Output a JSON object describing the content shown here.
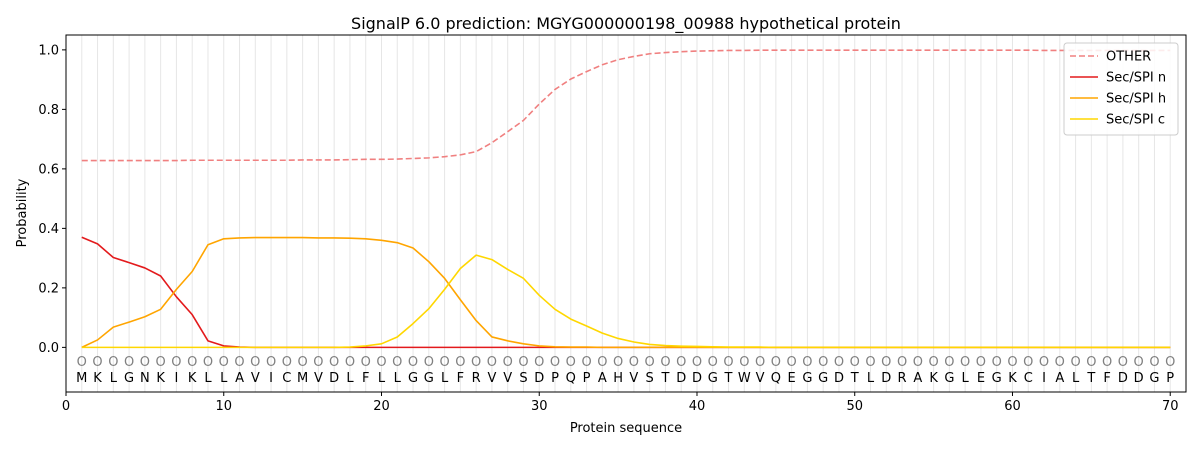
{
  "chart_data": {
    "type": "line",
    "title": "SignalP 6.0 prediction: MGYG000000198_00988 hypothetical protein",
    "xlabel": "Protein sequence",
    "ylabel": "Probability",
    "xlim": [
      0,
      71
    ],
    "ylim": [
      -0.15,
      1.05
    ],
    "xticks": [
      0,
      10,
      20,
      30,
      40,
      50,
      60,
      70
    ],
    "yticks": [
      0.0,
      0.2,
      0.4,
      0.6,
      0.8,
      1.0
    ],
    "grid": "vertical lines at each residue",
    "legend_position": "top-right",
    "sequence": [
      "M",
      "K",
      "L",
      "G",
      "N",
      "K",
      "I",
      "K",
      "L",
      "L",
      "A",
      "V",
      "I",
      "C",
      "M",
      "V",
      "D",
      "L",
      "F",
      "L",
      "L",
      "G",
      "G",
      "L",
      "F",
      "R",
      "V",
      "V",
      "S",
      "D",
      "P",
      "Q",
      "P",
      "A",
      "H",
      "V",
      "S",
      "T",
      "D",
      "D",
      "G",
      "T",
      "W",
      "V",
      "Q",
      "E",
      "G",
      "G",
      "D",
      "T",
      "L",
      "D",
      "R",
      "A",
      "K",
      "G",
      "L",
      "E",
      "G",
      "K",
      "C",
      "I",
      "A",
      "L",
      "T",
      "F",
      "D",
      "D",
      "G",
      "P"
    ],
    "region_labels": [
      "O",
      "O",
      "O",
      "O",
      "O",
      "O",
      "O",
      "O",
      "O",
      "O",
      "O",
      "O",
      "O",
      "O",
      "O",
      "O",
      "O",
      "O",
      "O",
      "O",
      "O",
      "O",
      "O",
      "O",
      "O",
      "O",
      "O",
      "O",
      "O",
      "O",
      "O",
      "O",
      "O",
      "O",
      "O",
      "O",
      "O",
      "O",
      "O",
      "O",
      "O",
      "O",
      "O",
      "O",
      "O",
      "O",
      "O",
      "O",
      "O",
      "O",
      "O",
      "O",
      "O",
      "O",
      "O",
      "O",
      "O",
      "O",
      "O",
      "O",
      "O",
      "O",
      "O",
      "O",
      "O",
      "O",
      "O",
      "O",
      "O",
      "O"
    ],
    "series": [
      {
        "name": "OTHER",
        "color": "#f08080",
        "style": "dashed",
        "values": [
          0.628,
          0.628,
          0.628,
          0.628,
          0.628,
          0.628,
          0.628,
          0.629,
          0.629,
          0.629,
          0.629,
          0.629,
          0.629,
          0.629,
          0.63,
          0.63,
          0.63,
          0.631,
          0.632,
          0.632,
          0.633,
          0.635,
          0.637,
          0.641,
          0.647,
          0.658,
          0.688,
          0.725,
          0.763,
          0.818,
          0.867,
          0.902,
          0.927,
          0.95,
          0.967,
          0.978,
          0.987,
          0.991,
          0.994,
          0.996,
          0.997,
          0.998,
          0.998,
          0.999,
          0.999,
          0.999,
          0.999,
          0.999,
          0.999,
          0.999,
          0.999,
          0.999,
          0.999,
          0.999,
          0.999,
          0.999,
          0.999,
          0.999,
          0.999,
          0.999,
          0.999,
          0.998,
          0.998,
          0.998,
          0.998,
          0.998,
          0.998,
          0.998,
          0.998,
          0.998
        ]
      },
      {
        "name": "Sec/SPI n",
        "color": "#e31a1c",
        "style": "solid",
        "values": [
          0.37,
          0.348,
          0.302,
          0.285,
          0.267,
          0.24,
          0.17,
          0.11,
          0.022,
          0.005,
          0.001,
          0,
          0,
          0,
          0,
          0,
          0,
          0,
          0,
          0,
          0,
          0,
          0,
          0,
          0,
          0,
          0,
          0,
          0,
          0,
          0,
          0,
          0,
          0,
          0,
          0,
          0,
          0,
          0,
          0,
          0,
          0,
          0,
          0,
          0,
          0,
          0,
          0,
          0,
          0,
          0,
          0,
          0,
          0,
          0,
          0,
          0,
          0,
          0,
          0,
          0,
          0,
          0,
          0,
          0,
          0,
          0,
          0,
          0,
          0
        ]
      },
      {
        "name": "Sec/SPI h",
        "color": "#ffa500",
        "style": "solid",
        "values": [
          0,
          0.025,
          0.068,
          0.085,
          0.103,
          0.128,
          0.195,
          0.255,
          0.345,
          0.365,
          0.368,
          0.369,
          0.369,
          0.369,
          0.369,
          0.368,
          0.368,
          0.367,
          0.365,
          0.36,
          0.352,
          0.334,
          0.288,
          0.232,
          0.16,
          0.09,
          0.035,
          0.022,
          0.012,
          0.005,
          0.002,
          0.001,
          0.001,
          0,
          0,
          0,
          0,
          0,
          0,
          0,
          0,
          0,
          0,
          0,
          0,
          0,
          0,
          0,
          0,
          0,
          0,
          0,
          0,
          0,
          0,
          0,
          0,
          0,
          0,
          0,
          0,
          0,
          0,
          0,
          0,
          0,
          0,
          0,
          0,
          0
        ]
      },
      {
        "name": "Sec/SPI c",
        "color": "#ffd700",
        "style": "solid",
        "values": [
          0,
          0,
          0,
          0,
          0,
          0,
          0,
          0,
          0,
          0,
          0,
          0,
          0,
          0,
          0,
          0,
          0,
          0.001,
          0.005,
          0.012,
          0.035,
          0.08,
          0.13,
          0.195,
          0.265,
          0.31,
          0.295,
          0.262,
          0.232,
          0.175,
          0.128,
          0.095,
          0.072,
          0.048,
          0.03,
          0.018,
          0.01,
          0.006,
          0.004,
          0.003,
          0.002,
          0.001,
          0.001,
          0.001,
          0,
          0,
          0,
          0,
          0,
          0,
          0,
          0,
          0,
          0,
          0,
          0,
          0,
          0,
          0,
          0,
          0,
          0,
          0,
          0,
          0,
          0,
          0,
          0,
          0,
          0
        ]
      }
    ]
  }
}
